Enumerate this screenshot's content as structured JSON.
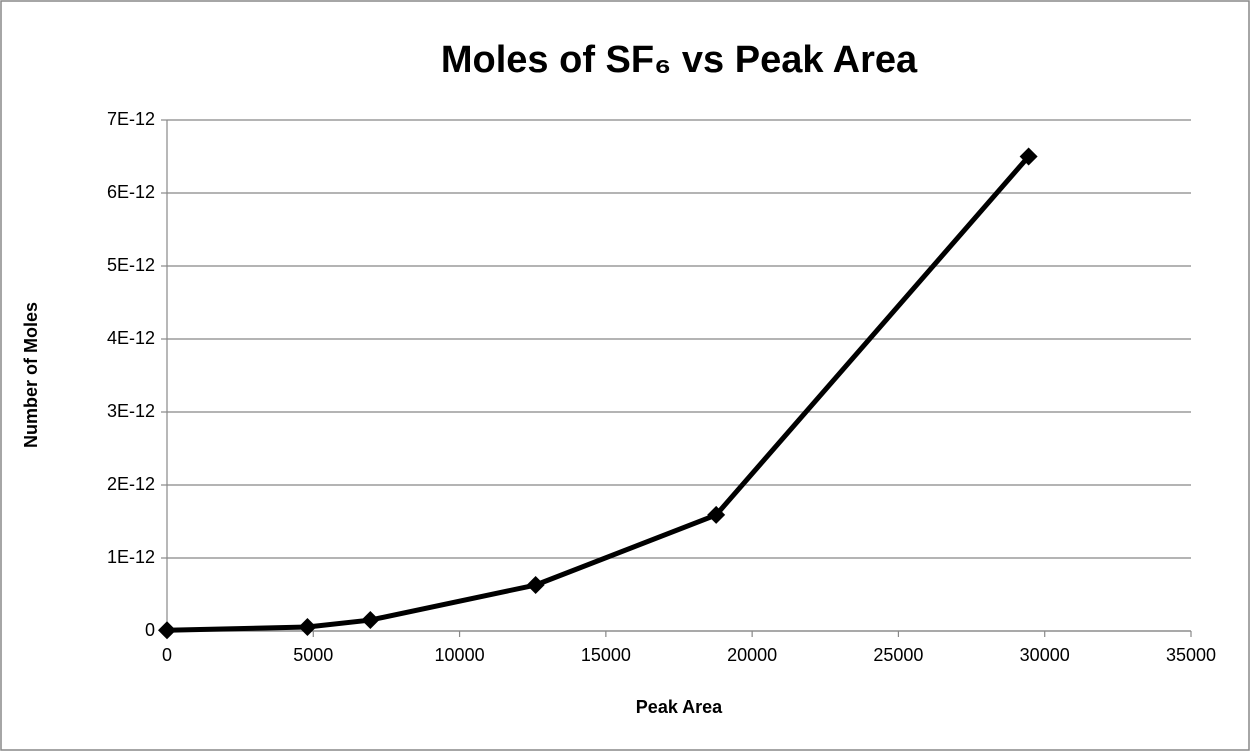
{
  "chart_data": {
    "type": "line",
    "title": "Moles of SF₆ vs Peak Area",
    "xlabel": "Peak Area",
    "ylabel": "Number of Moles",
    "x": [
      0,
      4800,
      6950,
      12600,
      18770,
      29450
    ],
    "series": [
      {
        "color": "#000000",
        "values": [
          1e-14,
          5.5e-14,
          1.5e-13,
          6.3e-13,
          1.59e-12,
          6.5e-12
        ]
      }
    ],
    "xlim": [
      0,
      35000
    ],
    "xticks": [
      0,
      5000,
      10000,
      15000,
      20000,
      25000,
      30000,
      35000
    ],
    "ylim": [
      0,
      7e-12
    ],
    "yticks": [
      0,
      {
        "value": 1e-12,
        "label": "1E-12"
      },
      {
        "value": 2e-12,
        "label": "2E-12"
      },
      {
        "value": 3e-12,
        "label": "3E-12"
      },
      {
        "value": 4e-12,
        "label": "4E-12"
      },
      {
        "value": 5e-12,
        "label": "5E-12"
      },
      {
        "value": 6e-12,
        "label": "6E-12"
      },
      {
        "value": 7e-12,
        "label": "7E-12"
      }
    ],
    "grid": true
  }
}
